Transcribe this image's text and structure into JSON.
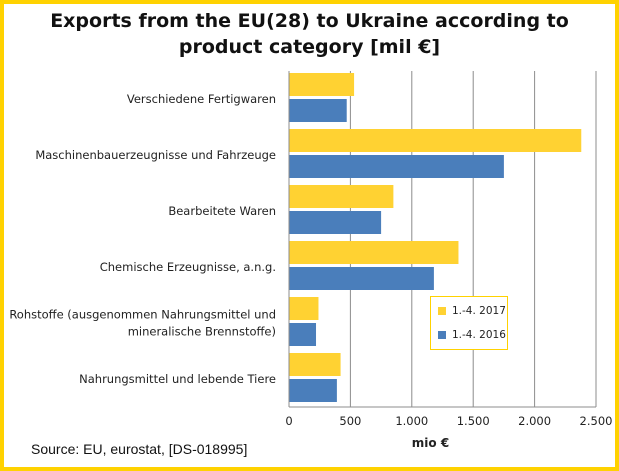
{
  "chart_data": {
    "type": "bar",
    "orientation": "horizontal",
    "title": "Exports from the EU(28) to Ukraine according to product category [mil €]",
    "title_lines": [
      "Exports from the EU(28) to Ukraine according to",
      "product category [mil €]"
    ],
    "xlabel": "mio €",
    "xlim": [
      0,
      2500
    ],
    "xticks": [
      0,
      500,
      1000,
      1500,
      2000,
      2500
    ],
    "xtick_labels": [
      "0",
      "500",
      "1.000",
      "1.500",
      "2.000",
      "2.500"
    ],
    "grid": "vertical",
    "legend_position": "right",
    "categories": [
      "Verschiedene Fertigwaren",
      "Maschinenbauerzeugnisse und Fahrzeuge",
      "Bearbeitete Waren",
      "Chemische Erzeugnisse, a.n.g.",
      "Rohstoffe (ausgenommen Nahrungsmittel und mineralische Brennstoffe)",
      "Nahrungsmittel und lebende Tiere"
    ],
    "category_lines": [
      [
        "Verschiedene Fertigwaren"
      ],
      [
        "Maschinenbauerzeugnisse und Fahrzeuge"
      ],
      [
        "Bearbeitete Waren"
      ],
      [
        "Chemische Erzeugnisse, a.n.g."
      ],
      [
        "Rohstoffe (ausgenommen Nahrungsmittel und",
        "mineralische Brennstoffe)"
      ],
      [
        "Nahrungsmittel und lebende Tiere"
      ]
    ],
    "series": [
      {
        "name": "1.-4. 2017",
        "color": "#FFD232",
        "values": [
          530,
          2380,
          850,
          1380,
          240,
          420
        ]
      },
      {
        "name": "1.-4. 2016",
        "color": "#4A7EBB",
        "values": [
          470,
          1750,
          750,
          1180,
          220,
          390
        ]
      }
    ]
  },
  "source": "Source: EU, eurostat,  [DS-018995]",
  "colors": {
    "frame": "#FFD200",
    "grid": "#8C8C8C"
  }
}
